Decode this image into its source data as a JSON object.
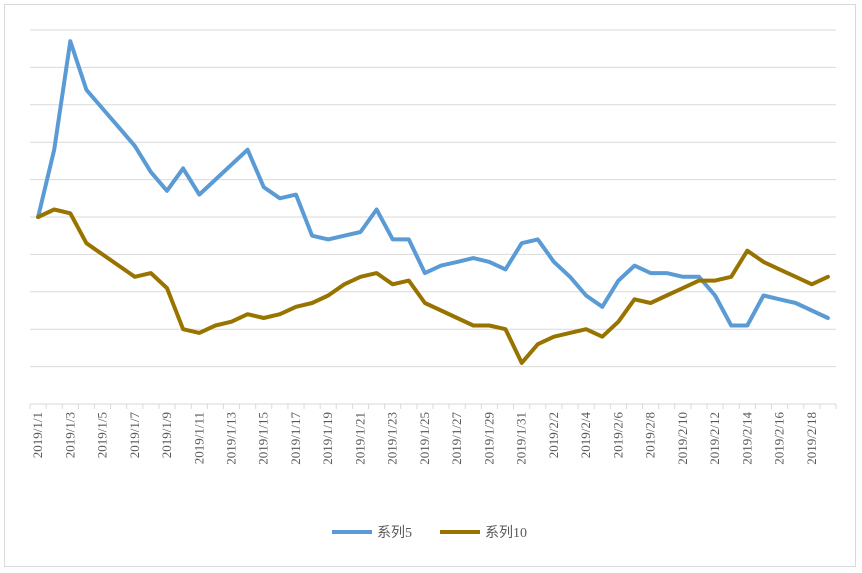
{
  "chart_data": {
    "type": "line",
    "title": "",
    "xlabel": "",
    "ylabel": "",
    "grid": true,
    "legend_position": "bottom",
    "y_axis_labels_shown": false,
    "ylim": [
      0,
      10
    ],
    "categories": [
      "2019/1/1",
      "2019/1/2",
      "2019/1/3",
      "2019/1/4",
      "2019/1/5",
      "2019/1/6",
      "2019/1/7",
      "2019/1/8",
      "2019/1/9",
      "2019/1/10",
      "2019/1/11",
      "2019/1/12",
      "2019/1/13",
      "2019/1/14",
      "2019/1/15",
      "2019/1/16",
      "2019/1/17",
      "2019/1/18",
      "2019/1/19",
      "2019/1/20",
      "2019/1/21",
      "2019/1/22",
      "2019/1/23",
      "2019/1/24",
      "2019/1/25",
      "2019/1/26",
      "2019/1/27",
      "2019/1/28",
      "2019/1/29",
      "2019/1/30",
      "2019/1/31",
      "2019/2/1",
      "2019/2/2",
      "2019/2/3",
      "2019/2/4",
      "2019/2/5",
      "2019/2/6",
      "2019/2/7",
      "2019/2/8",
      "2019/2/9",
      "2019/2/10",
      "2019/2/11",
      "2019/2/12",
      "2019/2/13",
      "2019/2/14",
      "2019/2/15",
      "2019/2/16",
      "2019/2/17",
      "2019/2/18",
      "2019/2/19"
    ],
    "series": [
      {
        "name": "系列5",
        "color": "#5b9bd5",
        "values": [
          5.0,
          6.8,
          9.7,
          8.4,
          7.9,
          7.4,
          6.9,
          6.2,
          5.7,
          6.3,
          5.6,
          6.0,
          6.4,
          6.8,
          5.8,
          5.5,
          5.6,
          4.5,
          4.4,
          4.5,
          4.6,
          5.2,
          4.4,
          4.4,
          3.5,
          3.7,
          3.8,
          3.9,
          3.8,
          3.6,
          4.3,
          4.4,
          3.8,
          3.4,
          2.9,
          2.6,
          3.3,
          3.7,
          3.5,
          3.5,
          3.4,
          3.4,
          2.9,
          2.1,
          2.1,
          2.9,
          2.8,
          2.7,
          2.5,
          2.3
        ]
      },
      {
        "name": "系列10",
        "color": "#997300",
        "values": [
          5.0,
          5.2,
          5.1,
          4.3,
          4.0,
          3.7,
          3.4,
          3.5,
          3.1,
          2.0,
          1.9,
          2.1,
          2.2,
          2.4,
          2.3,
          2.4,
          2.6,
          2.7,
          2.9,
          3.2,
          3.4,
          3.5,
          3.2,
          3.3,
          2.7,
          2.5,
          2.3,
          2.1,
          2.1,
          2.0,
          1.1,
          1.6,
          1.8,
          1.9,
          2.0,
          1.8,
          2.2,
          2.8,
          2.7,
          2.9,
          3.1,
          3.3,
          3.3,
          3.4,
          4.1,
          3.8,
          3.6,
          3.4,
          3.2,
          3.4
        ]
      }
    ],
    "x_tick_labels": [
      "2019/1/1",
      "2019/1/3",
      "2019/1/5",
      "2019/1/7",
      "2019/1/9",
      "2019/1/11",
      "2019/1/13",
      "2019/1/15",
      "2019/1/17",
      "2019/1/19",
      "2019/1/21",
      "2019/1/23",
      "2019/1/25",
      "2019/1/27",
      "2019/1/29",
      "2019/1/31",
      "2019/2/2",
      "2019/2/4",
      "2019/2/6",
      "2019/2/8",
      "2019/2/10",
      "2019/2/12",
      "2019/2/14",
      "2019/2/16",
      "2019/2/18"
    ]
  },
  "legend": [
    {
      "label": "系列5",
      "color": "#5b9bd5"
    },
    {
      "label": "系列10",
      "color": "#997300"
    }
  ]
}
